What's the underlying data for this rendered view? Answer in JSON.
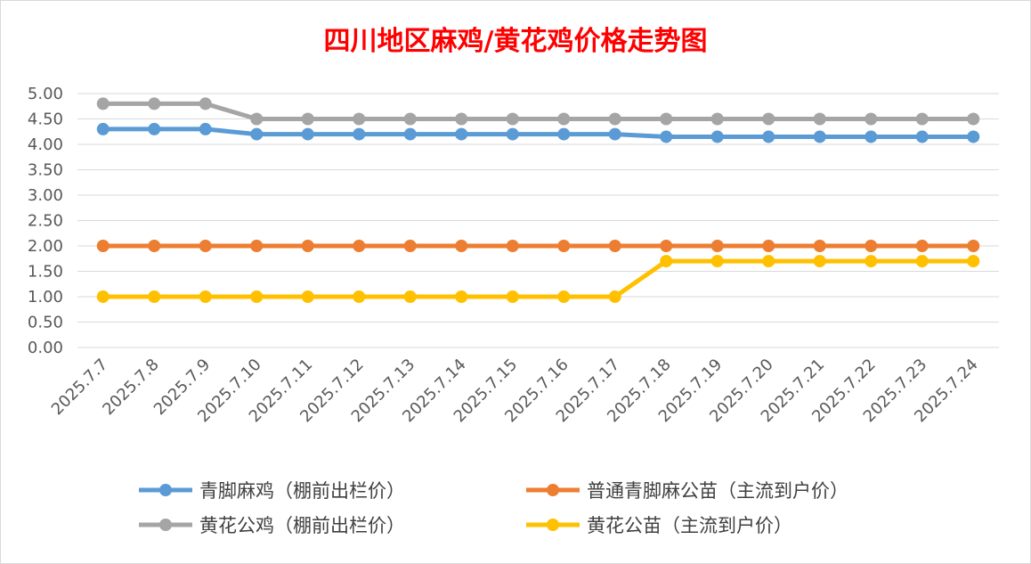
{
  "chart_data": {
    "type": "line",
    "title": "四川地区麻鸡/黄花鸡价格走势图",
    "xlabel": "",
    "ylabel": "",
    "ylim": [
      0,
      5
    ],
    "y_ticks": [
      "0.00",
      "0.50",
      "1.00",
      "1.50",
      "2.00",
      "2.50",
      "3.00",
      "3.50",
      "4.00",
      "4.50",
      "5.00"
    ],
    "grid": true,
    "legend_position": "bottom",
    "categories": [
      "2025.7.7",
      "2025.7.8",
      "2025.7.9",
      "2025.7.10",
      "2025.7.11",
      "2025.7.12",
      "2025.7.13",
      "2025.7.14",
      "2025.7.15",
      "2025.7.16",
      "2025.7.17",
      "2025.7.18",
      "2025.7.19",
      "2025.7.20",
      "2025.7.21",
      "2025.7.22",
      "2025.7.23",
      "2025.7.24"
    ],
    "series": [
      {
        "name": "青脚麻鸡（棚前出栏价）",
        "color": "#5b9bd5",
        "values": [
          4.3,
          4.3,
          4.3,
          4.2,
          4.2,
          4.2,
          4.2,
          4.2,
          4.2,
          4.2,
          4.2,
          4.15,
          4.15,
          4.15,
          4.15,
          4.15,
          4.15,
          4.15
        ]
      },
      {
        "name": "普通青脚麻公苗（主流到户价）",
        "color": "#ed7d31",
        "values": [
          2.0,
          2.0,
          2.0,
          2.0,
          2.0,
          2.0,
          2.0,
          2.0,
          2.0,
          2.0,
          2.0,
          2.0,
          2.0,
          2.0,
          2.0,
          2.0,
          2.0,
          2.0
        ]
      },
      {
        "name": "黄花公鸡（棚前出栏价）",
        "color": "#a5a5a5",
        "values": [
          4.8,
          4.8,
          4.8,
          4.5,
          4.5,
          4.5,
          4.5,
          4.5,
          4.5,
          4.5,
          4.5,
          4.5,
          4.5,
          4.5,
          4.5,
          4.5,
          4.5,
          4.5
        ]
      },
      {
        "name": "黄花公苗（主流到户价）",
        "color": "#ffc000",
        "values": [
          1.0,
          1.0,
          1.0,
          1.0,
          1.0,
          1.0,
          1.0,
          1.0,
          1.0,
          1.0,
          1.0,
          1.7,
          1.7,
          1.7,
          1.7,
          1.7,
          1.7,
          1.7
        ]
      }
    ]
  }
}
